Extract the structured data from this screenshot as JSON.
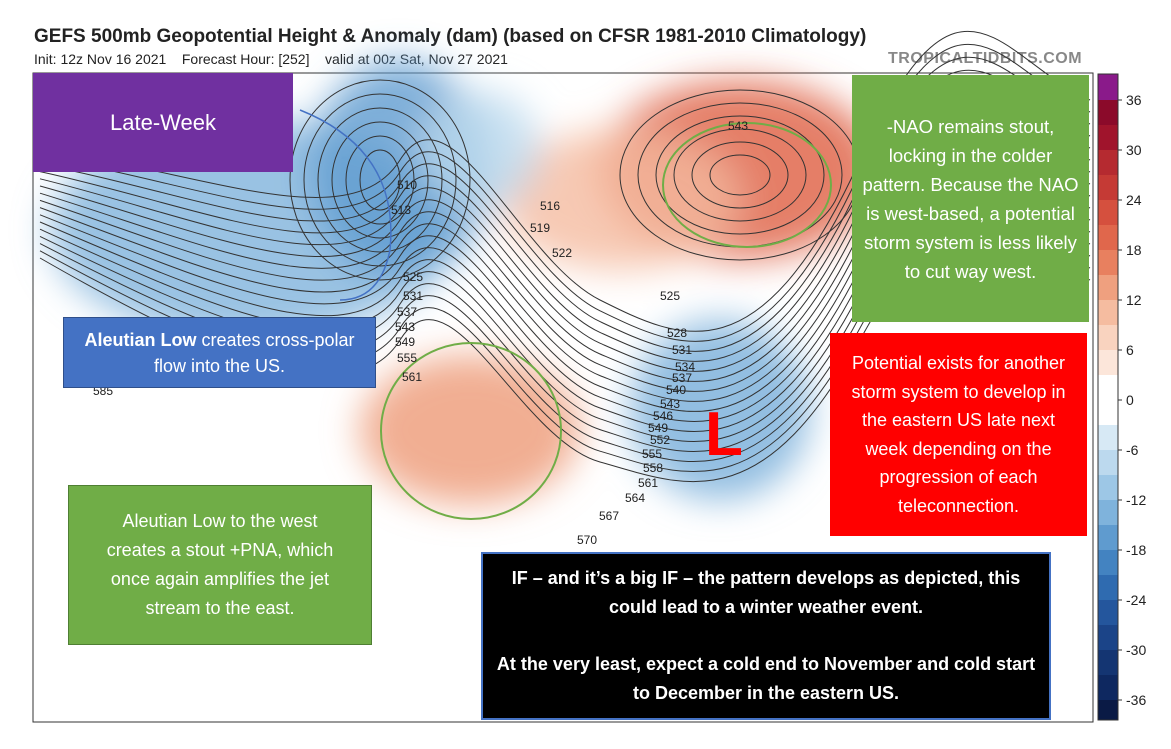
{
  "header": {
    "title": "GEFS 500mb Geopotential Height & Anomaly (dam) (based on CFSR 1981-2010 Climatology)",
    "subtitle": "Init: 12z Nov 16 2021    Forecast Hour: [252]    valid at 00z Sat, Nov 27 2021",
    "source": "TROPICALTIDBITS.COM"
  },
  "colorbar": {
    "ticks": [
      36,
      30,
      24,
      18,
      12,
      6,
      0,
      -6,
      -12,
      -18,
      -24,
      -30,
      -36
    ],
    "colors": [
      "#8a1a8a",
      "#8b0a2a",
      "#a0142c",
      "#b52a30",
      "#c53a35",
      "#d5503e",
      "#e0674c",
      "#e8805f",
      "#efa07f",
      "#f5bca0",
      "#f9d3bf",
      "#fce6da",
      "#ffffff",
      "#ffffff",
      "#d7e9f5",
      "#bcd9ee",
      "#9dc7e6",
      "#7fb3dc",
      "#5f9bcf",
      "#4383c1",
      "#2f6bb0",
      "#24569d",
      "#1b4488",
      "#143572",
      "#0e2860",
      "#0a1a45"
    ]
  },
  "map": {
    "contour_labels": [
      "543",
      "510",
      "513",
      "516",
      "519",
      "522",
      "525",
      "531",
      "537",
      "543",
      "549",
      "555",
      "561",
      "585",
      "525",
      "528",
      "531",
      "534",
      "537",
      "540",
      "543",
      "546",
      "549",
      "552",
      "555",
      "558",
      "561",
      "564",
      "567",
      "570"
    ],
    "low_marker": "L"
  },
  "annotations": {
    "late_week": "Late-Week",
    "aleutian": {
      "bold": "Aleutian Low",
      "text": " creates cross-polar flow into the US."
    },
    "nao": "-NAO remains stout, locking in the colder pattern. Because the NAO is west-based, a potential storm system is less likely to cut way west.",
    "storm": "Potential exists for another storm system to develop in the eastern US late next week depending on the progression of each teleconnection.",
    "pna": "Aleutian Low to the west creates a stout +PNA, which once again amplifies the jet stream to the east.",
    "winter": [
      "IF – and it’s a big IF – the pattern develops as depicted, this could lead to a winter weather event.",
      "At the very least, expect a cold end to November and cold start to December in the eastern US."
    ]
  }
}
